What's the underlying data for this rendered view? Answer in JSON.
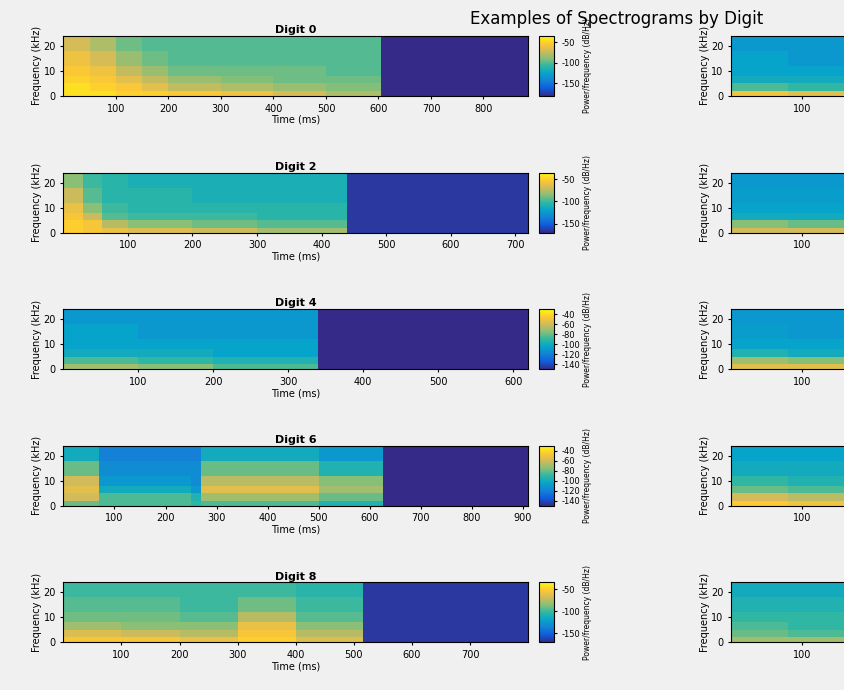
{
  "title": "Examples of Spectrograms by Digit",
  "chart_data": [
    {
      "type": "heatmap",
      "title": "Digit 0",
      "x_label": "Time (ms)",
      "y_label": "Frequency (kHz)",
      "xlim": [
        0,
        885
      ],
      "xticks": [
        100,
        200,
        300,
        400,
        500,
        600,
        700,
        800
      ],
      "ylim": [
        0,
        24
      ],
      "yticks": [
        0,
        10,
        20
      ],
      "x_edges": [
        0,
        50,
        100,
        150,
        200,
        300,
        400,
        500,
        605,
        885
      ],
      "y_edges": [
        0,
        2,
        5,
        8,
        12,
        18,
        24
      ],
      "cells": [
        [
          -45,
          -45,
          -50,
          -50,
          -55,
          -60,
          -70,
          -80,
          -180
        ],
        [
          -45,
          -50,
          -55,
          -65,
          -75,
          -80,
          -85,
          -90,
          -180
        ],
        [
          -50,
          -55,
          -65,
          -75,
          -85,
          -90,
          -95,
          -95,
          -180
        ],
        [
          -55,
          -60,
          -75,
          -85,
          -95,
          -95,
          -95,
          -100,
          -180
        ],
        [
          -60,
          -70,
          -85,
          -95,
          -100,
          -100,
          -100,
          -100,
          -180
        ],
        [
          -70,
          -80,
          -95,
          -100,
          -100,
          -100,
          -100,
          -100,
          -180
        ]
      ],
      "colorbar": {
        "label": "Power/frequency (dB/Hz)",
        "range": [
          -180,
          -35
        ],
        "ticks": [
          -150,
          -100,
          -50
        ]
      }
    },
    {
      "type": "heatmap",
      "title": "Digit 2",
      "x_label": "Time (ms)",
      "y_label": "Frequency (kHz)",
      "xlim": [
        0,
        720
      ],
      "xticks": [
        100,
        200,
        300,
        400,
        500,
        600,
        700
      ],
      "ylim": [
        0,
        24
      ],
      "yticks": [
        0,
        10,
        20
      ],
      "x_edges": [
        0,
        30,
        60,
        100,
        200,
        300,
        440,
        720
      ],
      "y_edges": [
        0,
        2,
        5,
        8,
        12,
        18,
        24
      ],
      "cells": [
        [
          -50,
          -55,
          -60,
          -65,
          -70,
          -80,
          -165
        ],
        [
          -50,
          -55,
          -75,
          -85,
          -90,
          -95,
          -165
        ],
        [
          -55,
          -70,
          -95,
          -100,
          -100,
          -105,
          -165
        ],
        [
          -60,
          -85,
          -100,
          -105,
          -105,
          -105,
          -165
        ],
        [
          -70,
          -95,
          -105,
          -105,
          -110,
          -110,
          -165
        ],
        [
          -85,
          -100,
          -105,
          -110,
          -110,
          -110,
          -165
        ]
      ],
      "colorbar": {
        "label": "Power/frequency (dB/Hz)",
        "range": [
          -170,
          -35
        ],
        "ticks": [
          -150,
          -100,
          -50
        ]
      }
    },
    {
      "type": "heatmap",
      "title": "Digit 4",
      "x_label": "Time (ms)",
      "y_label": "Frequency (kHz)",
      "xlim": [
        0,
        620
      ],
      "xticks": [
        100,
        200,
        300,
        400,
        500,
        600
      ],
      "ylim": [
        0,
        24
      ],
      "yticks": [
        0,
        10,
        20
      ],
      "x_edges": [
        0,
        100,
        200,
        340,
        620
      ],
      "y_edges": [
        0,
        2,
        5,
        8,
        12,
        18,
        24
      ],
      "cells": [
        [
          -70,
          -75,
          -85,
          -150
        ],
        [
          -85,
          -90,
          -95,
          -150
        ],
        [
          -100,
          -100,
          -105,
          -150
        ],
        [
          -105,
          -105,
          -105,
          -150
        ],
        [
          -105,
          -110,
          -110,
          -150
        ],
        [
          -110,
          -110,
          -110,
          -150
        ]
      ],
      "colorbar": {
        "label": "Power/frequency (dB/Hz)",
        "range": [
          -150,
          -30
        ],
        "ticks": [
          -140,
          -120,
          -100,
          -80,
          -60,
          -40
        ]
      }
    },
    {
      "type": "heatmap",
      "title": "Digit 6",
      "x_label": "Time (ms)",
      "y_label": "Frequency (kHz)",
      "xlim": [
        0,
        910
      ],
      "xticks": [
        100,
        200,
        300,
        400,
        500,
        600,
        700,
        800,
        900
      ],
      "ylim": [
        0,
        24
      ],
      "yticks": [
        0,
        10,
        20
      ],
      "x_edges": [
        0,
        70,
        250,
        270,
        500,
        625,
        910
      ],
      "y_edges": [
        0,
        2,
        5,
        8,
        12,
        18,
        24
      ],
      "cells": [
        [
          -80,
          -85,
          -90,
          -85,
          -95,
          -150
        ],
        [
          -60,
          -85,
          -95,
          -70,
          -80,
          -150
        ],
        [
          -55,
          -100,
          -110,
          -55,
          -70,
          -150
        ],
        [
          -60,
          -110,
          -115,
          -65,
          -75,
          -150
        ],
        [
          -80,
          -115,
          -115,
          -80,
          -95,
          -150
        ],
        [
          -100,
          -120,
          -120,
          -100,
          -110,
          -150
        ]
      ],
      "colorbar": {
        "label": "Power/frequency (dB/Hz)",
        "range": [
          -150,
          -30
        ],
        "ticks": [
          -140,
          -120,
          -100,
          -80,
          -60,
          -40
        ]
      }
    },
    {
      "type": "heatmap",
      "title": "Digit 8",
      "x_label": "Time (ms)",
      "y_label": "Frequency (kHz)",
      "xlim": [
        0,
        800
      ],
      "xticks": [
        100,
        200,
        300,
        400,
        500,
        600,
        700
      ],
      "ylim": [
        0,
        24
      ],
      "yticks": [
        0,
        10,
        20
      ],
      "x_edges": [
        0,
        100,
        200,
        300,
        400,
        515,
        800
      ],
      "y_edges": [
        0,
        2,
        5,
        8,
        12,
        18,
        24
      ],
      "cells": [
        [
          -55,
          -55,
          -60,
          -50,
          -65,
          -165
        ],
        [
          -65,
          -70,
          -75,
          -55,
          -75,
          -165
        ],
        [
          -80,
          -85,
          -85,
          -60,
          -85,
          -165
        ],
        [
          -90,
          -90,
          -95,
          -75,
          -95,
          -165
        ],
        [
          -95,
          -95,
          -100,
          -90,
          -100,
          -165
        ],
        [
          -100,
          -100,
          -100,
          -100,
          -105,
          -165
        ]
      ],
      "colorbar": {
        "label": "Power/frequency (dB/Hz)",
        "range": [
          -170,
          -35
        ],
        "ticks": [
          -150,
          -100,
          -50
        ]
      }
    },
    {
      "type": "heatmap",
      "y_label": "Frequency (kHz)",
      "xlim": [
        0,
        160
      ],
      "xticks": [
        100
      ],
      "ylim": [
        0,
        24
      ],
      "yticks": [
        0,
        10,
        20
      ],
      "x_edges": [
        0,
        80,
        160
      ],
      "y_edges": [
        0,
        2,
        5,
        8,
        12,
        18,
        24
      ],
      "cells": [
        [
          -50,
          -55
        ],
        [
          -85,
          -90
        ],
        [
          -100,
          -100
        ],
        [
          -105,
          -105
        ],
        [
          -105,
          -110
        ],
        [
          -110,
          -110
        ]
      ],
      "color_range": [
        -150,
        -30
      ]
    },
    {
      "type": "heatmap",
      "y_label": "Frequency (kHz)",
      "xlim": [
        0,
        160
      ],
      "xticks": [
        100
      ],
      "ylim": [
        0,
        24
      ],
      "yticks": [
        0,
        10,
        20
      ],
      "x_edges": [
        0,
        80,
        160
      ],
      "y_edges": [
        0,
        2,
        5,
        8,
        12,
        18,
        24
      ],
      "cells": [
        [
          -60,
          -60
        ],
        [
          -75,
          -80
        ],
        [
          -100,
          -100
        ],
        [
          -105,
          -105
        ],
        [
          -108,
          -108
        ],
        [
          -110,
          -110
        ]
      ],
      "color_range": [
        -150,
        -30
      ]
    },
    {
      "type": "heatmap",
      "y_label": "Frequency (kHz)",
      "xlim": [
        0,
        160
      ],
      "xticks": [
        100
      ],
      "ylim": [
        0,
        24
      ],
      "yticks": [
        0,
        10,
        20
      ],
      "x_edges": [
        0,
        80,
        160
      ],
      "y_edges": [
        0,
        2,
        5,
        8,
        12,
        18,
        24
      ],
      "cells": [
        [
          -55,
          -55
        ],
        [
          -70,
          -75
        ],
        [
          -95,
          -100
        ],
        [
          -105,
          -105
        ],
        [
          -108,
          -110
        ],
        [
          -110,
          -110
        ]
      ],
      "color_range": [
        -150,
        -30
      ]
    },
    {
      "type": "heatmap",
      "y_label": "Frequency (kHz)",
      "xlim": [
        0,
        160
      ],
      "xticks": [
        100
      ],
      "ylim": [
        0,
        24
      ],
      "yticks": [
        0,
        10,
        20
      ],
      "x_edges": [
        0,
        80,
        160
      ],
      "y_edges": [
        0,
        2,
        5,
        8,
        12,
        18,
        24
      ],
      "cells": [
        [
          -45,
          -50
        ],
        [
          -60,
          -65
        ],
        [
          -80,
          -85
        ],
        [
          -90,
          -95
        ],
        [
          -100,
          -100
        ],
        [
          -105,
          -105
        ]
      ],
      "color_range": [
        -150,
        -30
      ]
    },
    {
      "type": "heatmap",
      "y_label": "Frequency (kHz)",
      "xlim": [
        0,
        160
      ],
      "xticks": [
        100
      ],
      "ylim": [
        0,
        24
      ],
      "yticks": [
        0,
        10,
        20
      ],
      "x_edges": [
        0,
        80,
        160
      ],
      "y_edges": [
        0,
        2,
        5,
        8,
        12,
        18,
        24
      ],
      "cells": [
        [
          -70,
          -70
        ],
        [
          -80,
          -85
        ],
        [
          -85,
          -90
        ],
        [
          -90,
          -90
        ],
        [
          -95,
          -95
        ],
        [
          -100,
          -100
        ]
      ],
      "color_range": [
        -150,
        -30
      ]
    }
  ]
}
